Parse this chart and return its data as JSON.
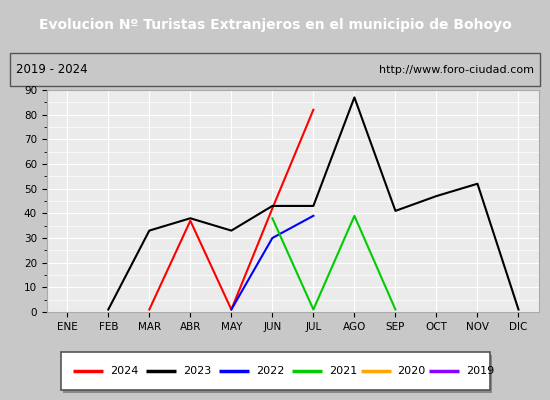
{
  "title": "Evolucion Nº Turistas Extranjeros en el municipio de Bohoyo",
  "subtitle_left": "2019 - 2024",
  "subtitle_right": "http://www.foro-ciudad.com",
  "months": [
    "ENE",
    "FEB",
    "MAR",
    "ABR",
    "MAY",
    "JUN",
    "JUL",
    "AGO",
    "SEP",
    "OCT",
    "NOV",
    "DIC"
  ],
  "ylim": [
    0,
    90
  ],
  "yticks_major": [
    0,
    10,
    20,
    30,
    40,
    50,
    60,
    70,
    80,
    90
  ],
  "series": {
    "2024": {
      "color": "#ff0000",
      "data": {
        "MAR": 1,
        "ABR": 37,
        "MAY": 1,
        "JUN": 42,
        "JUL": 82
      }
    },
    "2023": {
      "color": "#000000",
      "data": {
        "FEB": 1,
        "MAR": 33,
        "ABR": 38,
        "MAY": 33,
        "JUN": 43,
        "JUL": 43,
        "AGO": 87,
        "SEP": 41,
        "OCT": 47,
        "NOV": 52,
        "DIC": 1
      }
    },
    "2022": {
      "color": "#0000ff",
      "data": {
        "MAY": 1,
        "JUN": 30,
        "JUL": 39
      }
    },
    "2021": {
      "color": "#00cc00",
      "data": {
        "JUN": 38,
        "JUL": 1,
        "AGO": 39,
        "SEP": 1
      }
    },
    "2020": {
      "color": "#ffa500",
      "data": {}
    },
    "2019": {
      "color": "#8b00ff",
      "data": {}
    }
  },
  "legend_years": [
    "2024",
    "2023",
    "2022",
    "2021",
    "2020",
    "2019"
  ],
  "title_bg": "#4d9fd6",
  "title_color": "#ffffff",
  "plot_bg": "#ebebeb",
  "grid_color": "#ffffff",
  "outer_bg": "#c8c8c8",
  "subtitle_bg": "#ffffff",
  "border_color": "#555555"
}
